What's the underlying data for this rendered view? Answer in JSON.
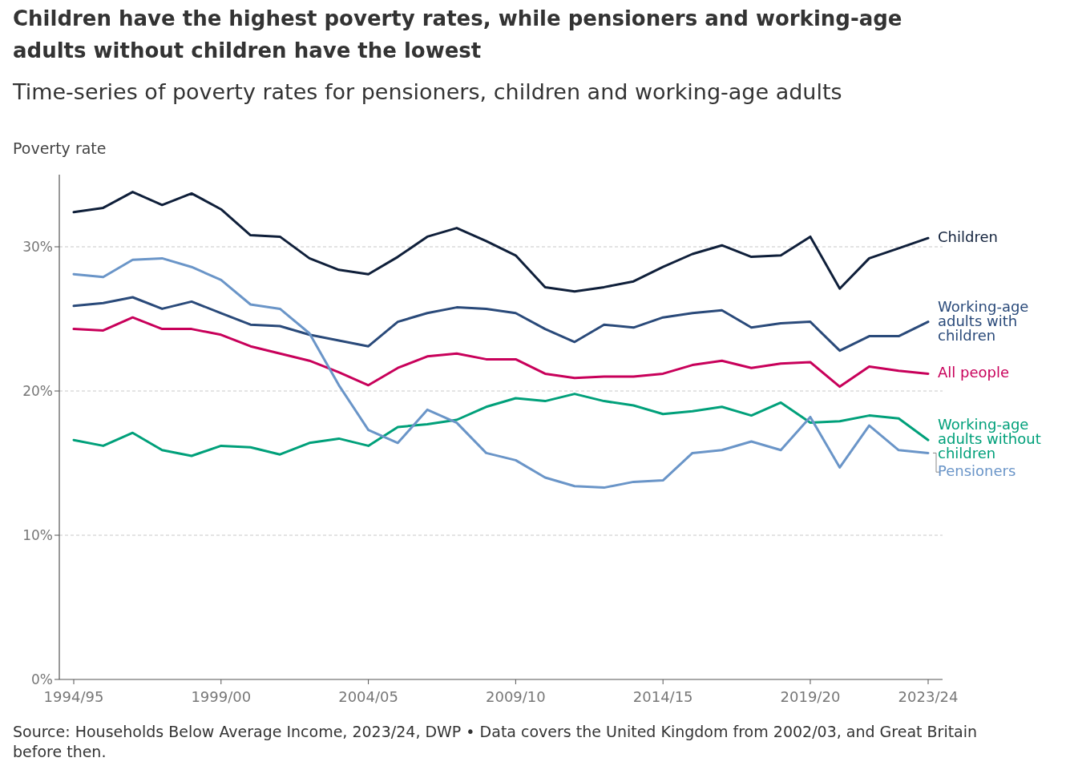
{
  "chart_data": {
    "type": "line",
    "title": "Children have the highest poverty rates, while pensioners and working-age adults without children have the lowest",
    "subtitle": "Time-series of poverty rates for pensioners, children and working-age adults",
    "ylabel": "Poverty rate",
    "categories": [
      "1994/95",
      null,
      null,
      null,
      null,
      "1999/00",
      null,
      null,
      null,
      null,
      "2004/05",
      null,
      null,
      null,
      null,
      "2009/10",
      null,
      null,
      null,
      null,
      "2014/15",
      null,
      null,
      null,
      null,
      "2019/20",
      null,
      null,
      null,
      "2023/24"
    ],
    "ylim": [
      0,
      35
    ],
    "yticks": [
      {
        "value": 0,
        "label": "0%"
      },
      {
        "value": 10,
        "label": "10%"
      },
      {
        "value": 20,
        "label": "20%"
      },
      {
        "value": 30,
        "label": "30%"
      }
    ],
    "grid": "y",
    "marker": "none",
    "line_style": "solid",
    "series": [
      {
        "name": "Children",
        "color": "#0f1f3a",
        "values": [
          32.4,
          32.7,
          33.8,
          32.9,
          33.7,
          32.6,
          30.8,
          30.7,
          29.2,
          28.4,
          28.1,
          29.3,
          30.7,
          31.3,
          30.4,
          29.4,
          27.2,
          26.9,
          27.2,
          27.6,
          28.6,
          29.5,
          30.1,
          29.3,
          29.4,
          30.7,
          27.1,
          29.2,
          29.9,
          30.6
        ]
      },
      {
        "name": "Working-age adults with children",
        "color": "#2a4a7a",
        "values": [
          25.9,
          26.1,
          26.5,
          25.7,
          26.2,
          25.4,
          24.6,
          24.5,
          23.9,
          23.5,
          23.1,
          24.8,
          25.4,
          25.8,
          25.7,
          25.4,
          24.3,
          23.4,
          24.6,
          24.4,
          25.1,
          25.4,
          25.6,
          24.4,
          24.7,
          24.8,
          22.8,
          23.8,
          23.8,
          24.8
        ]
      },
      {
        "name": "All people",
        "color": "#c8005a",
        "values": [
          24.3,
          24.2,
          25.1,
          24.3,
          24.3,
          23.9,
          23.1,
          22.6,
          22.1,
          21.3,
          20.4,
          21.6,
          22.4,
          22.6,
          22.2,
          22.2,
          21.2,
          20.9,
          21.0,
          21.0,
          21.2,
          21.8,
          22.1,
          21.6,
          21.9,
          22.0,
          20.3,
          21.7,
          21.4,
          21.2
        ]
      },
      {
        "name": "Working-age adults without children",
        "color": "#00a07a",
        "values": [
          16.6,
          16.2,
          17.1,
          15.9,
          15.5,
          16.2,
          16.1,
          15.6,
          16.4,
          16.7,
          16.2,
          17.5,
          17.7,
          18.0,
          18.9,
          19.5,
          19.3,
          19.8,
          19.3,
          19.0,
          18.4,
          18.6,
          18.9,
          18.3,
          19.2,
          17.8,
          17.9,
          18.3,
          18.1,
          16.6
        ]
      },
      {
        "name": "Pensioners",
        "color": "#6a95c8",
        "values": [
          28.1,
          27.9,
          29.1,
          29.2,
          28.6,
          27.7,
          26.0,
          25.7,
          24.0,
          20.4,
          17.3,
          16.4,
          18.7,
          17.8,
          15.7,
          15.2,
          14.0,
          13.4,
          13.3,
          13.7,
          13.8,
          15.7,
          15.9,
          16.5,
          15.9,
          18.2,
          14.7,
          17.6,
          15.9,
          15.7
        ]
      }
    ],
    "annotations": [
      "Source: Households Below Average Income, 2023/24, DWP • Data covers the United Kingdom from 2002/03, and Great Britain before then."
    ]
  }
}
